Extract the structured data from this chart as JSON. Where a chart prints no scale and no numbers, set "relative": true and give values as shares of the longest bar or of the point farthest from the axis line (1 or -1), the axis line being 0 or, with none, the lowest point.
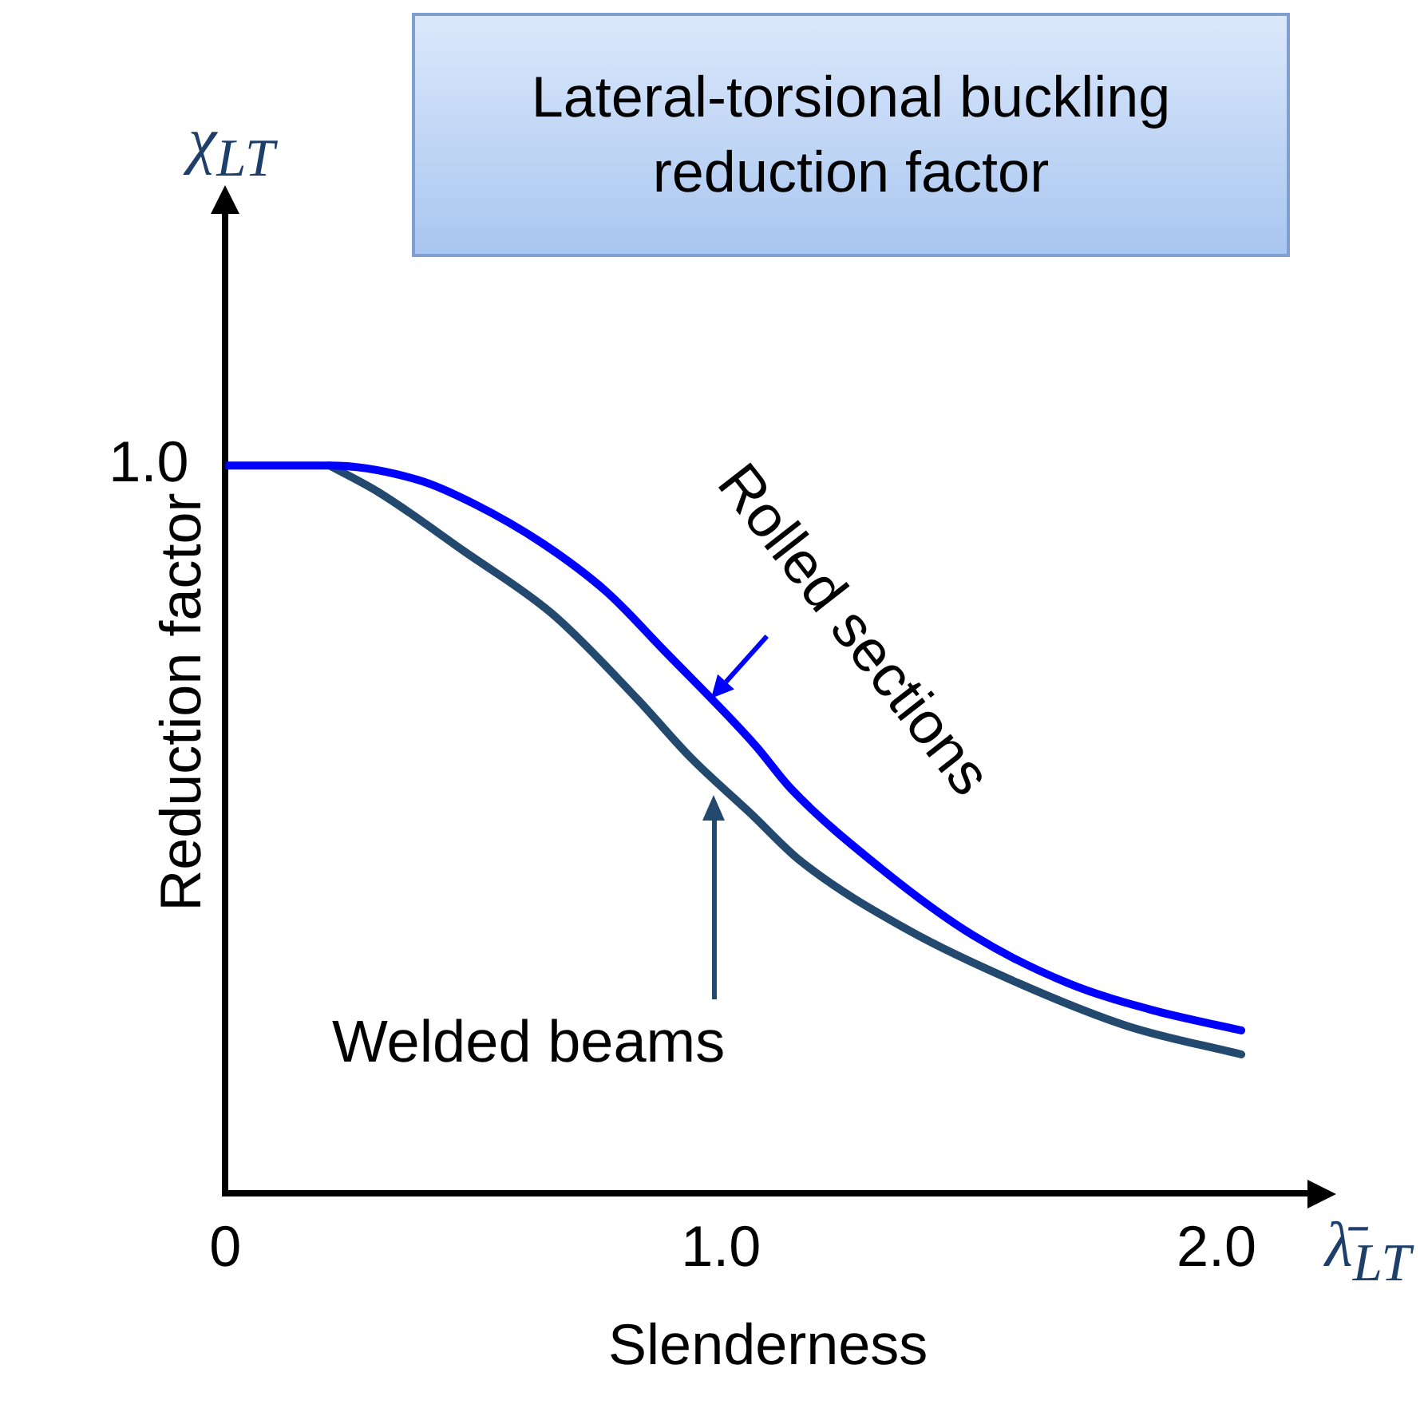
{
  "chart_data": {
    "type": "line",
    "title": "Lateral-torsional buckling reduction factor",
    "xlabel": "Slenderness",
    "ylabel": "Reduction factor",
    "xlim": [
      0,
      2.19
    ],
    "relative": true,
    "xticks": [
      0,
      {
        "value": 1,
        "label": "1.0"
      },
      {
        "value": 2,
        "label": "2.0"
      }
    ],
    "grid": false,
    "legend": false,
    "marker": "none",
    "line_style": "solid",
    "series": [
      {
        "color": "#0000ff",
        "x": [
          0,
          0.21,
          0.39,
          0.5,
          0.64,
          0.77,
          0.885,
          1.07,
          1.14,
          1.32,
          1.51,
          1.7,
          1.87,
          2.05
        ],
        "values": [
          1,
          1,
          0.98,
          0.948,
          0.893,
          0.826,
          0.746,
          0.615,
          0.557,
          0.448,
          0.354,
          0.289,
          0.252,
          0.224
        ]
      },
      {
        "color": "#23496f",
        "x": [
          0.21,
          0.31,
          0.48,
          0.66,
          0.83,
          0.94,
          1.06,
          1.16,
          1.38,
          1.6,
          1.82,
          2.05
        ],
        "values": [
          1,
          0.963,
          0.883,
          0.796,
          0.68,
          0.598,
          0.522,
          0.457,
          0.361,
          0.289,
          0.23,
          0.191
        ]
      }
    ],
    "annotations": [
      {
        "text": "Rolled sections",
        "x": 0.98,
        "y": 0.68
      },
      "Welded beams",
      {
        "text": "1.0",
        "x": 0,
        "y": 1
      },
      "χ$_{LT}$",
      "λ̄$_{LT}$"
    ]
  }
}
